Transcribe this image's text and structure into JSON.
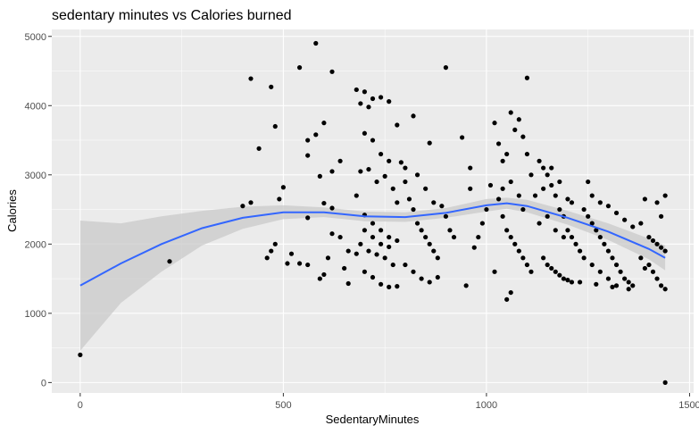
{
  "chart_data": {
    "type": "scatter",
    "title": "sedentary minutes vs Calories burned",
    "xlabel": "SedentaryMinutes",
    "ylabel": "Calories",
    "xlim": [
      -70,
      1510
    ],
    "ylim": [
      -150,
      5100
    ],
    "x_ticks": [
      0,
      500,
      1000,
      1500
    ],
    "y_ticks": [
      0,
      1000,
      2000,
      3000,
      4000,
      5000
    ],
    "x_tick_labels": [
      "0",
      "500",
      "1000",
      "1500"
    ],
    "y_tick_labels": [
      "0",
      "1000",
      "2000",
      "3000",
      "4000",
      "5000"
    ],
    "grid": true,
    "colors": {
      "panel": "#ebebeb",
      "grid_major": "#ffffff",
      "points": "#000000",
      "smooth_line": "#3366ff",
      "smooth_band": "#c9c9c9"
    },
    "smooth": {
      "method": "loess",
      "x": [
        0,
        100,
        200,
        300,
        400,
        500,
        600,
        700,
        800,
        900,
        1000,
        1050,
        1100,
        1200,
        1300,
        1400,
        1440
      ],
      "y": [
        1400,
        1720,
        2000,
        2230,
        2380,
        2460,
        2460,
        2400,
        2390,
        2450,
        2560,
        2590,
        2550,
        2380,
        2180,
        1930,
        1800
      ],
      "lower": [
        460,
        1150,
        1600,
        1980,
        2220,
        2360,
        2390,
        2330,
        2320,
        2380,
        2470,
        2510,
        2460,
        2280,
        2060,
        1780,
        1620
      ],
      "upper": [
        2340,
        2300,
        2400,
        2480,
        2540,
        2560,
        2530,
        2470,
        2460,
        2520,
        2650,
        2670,
        2640,
        2480,
        2300,
        2080,
        1980
      ]
    },
    "points": [
      [
        0,
        400
      ],
      [
        220,
        1750
      ],
      [
        1440,
        0
      ],
      [
        420,
        4390
      ],
      [
        470,
        4270
      ],
      [
        480,
        3700
      ],
      [
        440,
        3380
      ],
      [
        400,
        2550
      ],
      [
        420,
        2600
      ],
      [
        460,
        1800
      ],
      [
        470,
        1900
      ],
      [
        500,
        2820
      ],
      [
        490,
        2650
      ],
      [
        510,
        1720
      ],
      [
        520,
        1860
      ],
      [
        480,
        2000
      ],
      [
        540,
        4550
      ],
      [
        580,
        4900
      ],
      [
        620,
        4490
      ],
      [
        600,
        3750
      ],
      [
        640,
        3200
      ],
      [
        560,
        3500
      ],
      [
        560,
        3280
      ],
      [
        580,
        3580
      ],
      [
        590,
        2980
      ],
      [
        620,
        3050
      ],
      [
        600,
        2590
      ],
      [
        620,
        2520
      ],
      [
        560,
        2380
      ],
      [
        540,
        1720
      ],
      [
        560,
        1700
      ],
      [
        590,
        1500
      ],
      [
        600,
        1560
      ],
      [
        610,
        1800
      ],
      [
        620,
        2150
      ],
      [
        640,
        2100
      ],
      [
        650,
        1650
      ],
      [
        660,
        1430
      ],
      [
        660,
        1900
      ],
      [
        680,
        4230
      ],
      [
        700,
        4200
      ],
      [
        690,
        4030
      ],
      [
        720,
        4100
      ],
      [
        710,
        3980
      ],
      [
        740,
        4120
      ],
      [
        760,
        4060
      ],
      [
        700,
        3600
      ],
      [
        720,
        3500
      ],
      [
        740,
        3300
      ],
      [
        760,
        3200
      ],
      [
        690,
        3050
      ],
      [
        710,
        3080
      ],
      [
        730,
        2900
      ],
      [
        750,
        2980
      ],
      [
        770,
        2800
      ],
      [
        680,
        2700
      ],
      [
        700,
        2420
      ],
      [
        720,
        2300
      ],
      [
        740,
        2200
      ],
      [
        760,
        2100
      ],
      [
        780,
        2050
      ],
      [
        690,
        2000
      ],
      [
        710,
        1900
      ],
      [
        730,
        1850
      ],
      [
        750,
        1800
      ],
      [
        770,
        1700
      ],
      [
        700,
        1600
      ],
      [
        720,
        1520
      ],
      [
        740,
        1420
      ],
      [
        760,
        1380
      ],
      [
        780,
        1390
      ],
      [
        680,
        1860
      ],
      [
        700,
        2200
      ],
      [
        720,
        2100
      ],
      [
        740,
        2000
      ],
      [
        760,
        1960
      ],
      [
        780,
        2600
      ],
      [
        800,
        2900
      ],
      [
        780,
        3720
      ],
      [
        790,
        3180
      ],
      [
        800,
        3100
      ],
      [
        810,
        2650
      ],
      [
        820,
        2500
      ],
      [
        830,
        2300
      ],
      [
        840,
        2200
      ],
      [
        850,
        2100
      ],
      [
        860,
        2000
      ],
      [
        870,
        1900
      ],
      [
        880,
        1800
      ],
      [
        800,
        1700
      ],
      [
        820,
        1600
      ],
      [
        840,
        1500
      ],
      [
        860,
        1450
      ],
      [
        880,
        1520
      ],
      [
        820,
        3850
      ],
      [
        860,
        3460
      ],
      [
        900,
        4550
      ],
      [
        890,
        2550
      ],
      [
        900,
        2400
      ],
      [
        910,
        2200
      ],
      [
        920,
        2100
      ],
      [
        870,
        2600
      ],
      [
        850,
        2800
      ],
      [
        830,
        3000
      ],
      [
        940,
        3540
      ],
      [
        950,
        1400
      ],
      [
        970,
        1950
      ],
      [
        980,
        2100
      ],
      [
        990,
        2300
      ],
      [
        1000,
        2500
      ],
      [
        960,
        3100
      ],
      [
        960,
        2800
      ],
      [
        1010,
        2850
      ],
      [
        1020,
        3750
      ],
      [
        1030,
        3450
      ],
      [
        1040,
        3200
      ],
      [
        1050,
        3300
      ],
      [
        1060,
        3900
      ],
      [
        1070,
        3650
      ],
      [
        1080,
        3800
      ],
      [
        1090,
        3550
      ],
      [
        1100,
        3300
      ],
      [
        1110,
        3000
      ],
      [
        1120,
        2700
      ],
      [
        1100,
        4400
      ],
      [
        1030,
        2650
      ],
      [
        1040,
        2400
      ],
      [
        1050,
        2200
      ],
      [
        1060,
        2100
      ],
      [
        1070,
        2000
      ],
      [
        1080,
        1900
      ],
      [
        1090,
        1800
      ],
      [
        1100,
        1700
      ],
      [
        1110,
        1600
      ],
      [
        1050,
        1200
      ],
      [
        1060,
        1300
      ],
      [
        1020,
        1600
      ],
      [
        1040,
        2800
      ],
      [
        1060,
        2900
      ],
      [
        1080,
        2700
      ],
      [
        1090,
        2500
      ],
      [
        1130,
        3200
      ],
      [
        1140,
        3100
      ],
      [
        1150,
        3000
      ],
      [
        1160,
        2850
      ],
      [
        1170,
        2700
      ],
      [
        1180,
        2500
      ],
      [
        1190,
        2400
      ],
      [
        1200,
        2200
      ],
      [
        1210,
        2100
      ],
      [
        1220,
        2000
      ],
      [
        1230,
        1900
      ],
      [
        1140,
        1800
      ],
      [
        1150,
        1700
      ],
      [
        1160,
        1650
      ],
      [
        1170,
        1600
      ],
      [
        1180,
        1550
      ],
      [
        1190,
        1500
      ],
      [
        1200,
        1480
      ],
      [
        1210,
        1450
      ],
      [
        1140,
        2800
      ],
      [
        1160,
        3100
      ],
      [
        1180,
        2900
      ],
      [
        1200,
        2650
      ],
      [
        1130,
        2300
      ],
      [
        1150,
        2400
      ],
      [
        1170,
        2200
      ],
      [
        1190,
        2100
      ],
      [
        1210,
        2600
      ],
      [
        1240,
        2500
      ],
      [
        1250,
        2400
      ],
      [
        1260,
        2300
      ],
      [
        1270,
        2200
      ],
      [
        1280,
        2100
      ],
      [
        1290,
        2000
      ],
      [
        1300,
        1900
      ],
      [
        1310,
        1800
      ],
      [
        1320,
        1700
      ],
      [
        1330,
        1600
      ],
      [
        1340,
        1500
      ],
      [
        1350,
        1450
      ],
      [
        1360,
        1400
      ],
      [
        1250,
        2900
      ],
      [
        1260,
        2700
      ],
      [
        1280,
        2600
      ],
      [
        1300,
        2550
      ],
      [
        1320,
        2450
      ],
      [
        1340,
        2350
      ],
      [
        1360,
        2250
      ],
      [
        1240,
        1800
      ],
      [
        1260,
        1700
      ],
      [
        1280,
        1600
      ],
      [
        1300,
        1500
      ],
      [
        1320,
        1400
      ],
      [
        1230,
        1450
      ],
      [
        1270,
        1420
      ],
      [
        1310,
        1380
      ],
      [
        1350,
        1350
      ],
      [
        1380,
        2300
      ],
      [
        1390,
        2650
      ],
      [
        1400,
        2100
      ],
      [
        1410,
        2050
      ],
      [
        1420,
        2000
      ],
      [
        1430,
        1950
      ],
      [
        1440,
        1900
      ],
      [
        1400,
        1700
      ],
      [
        1410,
        1600
      ],
      [
        1420,
        1500
      ],
      [
        1430,
        1400
      ],
      [
        1440,
        1350
      ],
      [
        1420,
        2600
      ],
      [
        1430,
        2400
      ],
      [
        1440,
        2700
      ],
      [
        1380,
        1800
      ],
      [
        1390,
        1650
      ]
    ]
  }
}
